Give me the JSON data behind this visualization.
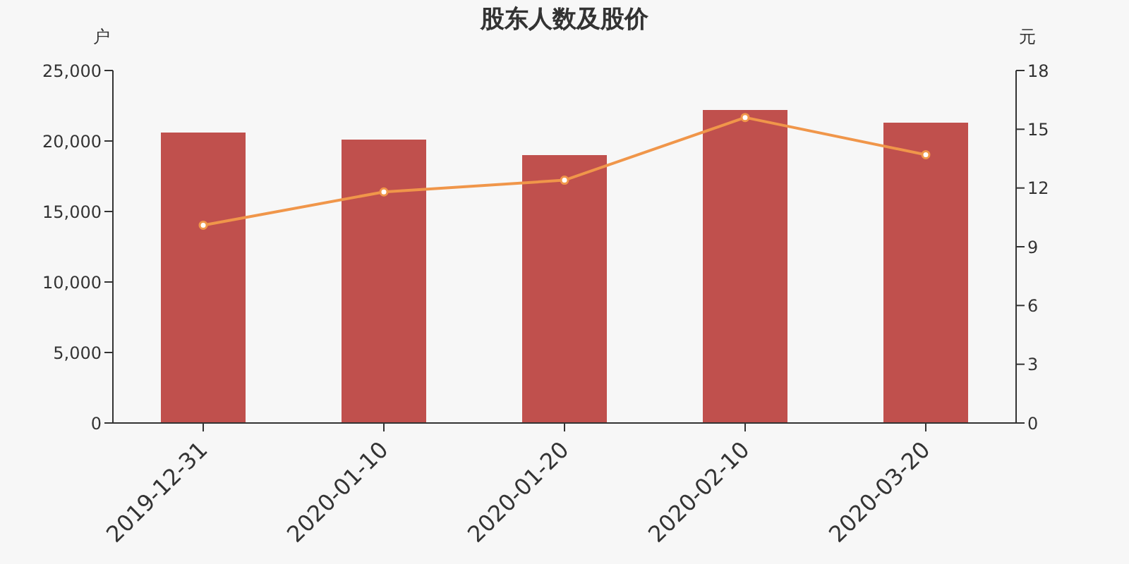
{
  "chart_data": {
    "type": "bar",
    "title": "股东人数及股价",
    "ylabel": "户",
    "y2label": "元",
    "categories": [
      "2019-12-31",
      "2020-01-10",
      "2020-01-20",
      "2020-02-10",
      "2020-03-20"
    ],
    "series": [
      {
        "color": "#c0504d",
        "values": [
          20600,
          20100,
          19000,
          22200,
          21300
        ]
      },
      {
        "type": "line",
        "axis": "y2",
        "color": "#f0964a",
        "values": [
          10.1,
          11.8,
          12.4,
          15.6,
          13.7
        ]
      }
    ],
    "ylim": [
      0,
      25000
    ],
    "yticks": [
      0,
      {
        "value": 5000,
        "label": "5,000"
      },
      {
        "value": 10000,
        "label": "10,000"
      },
      {
        "value": 15000,
        "label": "15,000"
      },
      {
        "value": 20000,
        "label": "20,000"
      },
      {
        "value": 25000,
        "label": "25,000"
      }
    ],
    "y2lim": [
      0,
      18
    ],
    "y2ticks": [
      0,
      3,
      6,
      9,
      12,
      15,
      18
    ],
    "marker": "circle",
    "grid": false,
    "legend": false
  }
}
